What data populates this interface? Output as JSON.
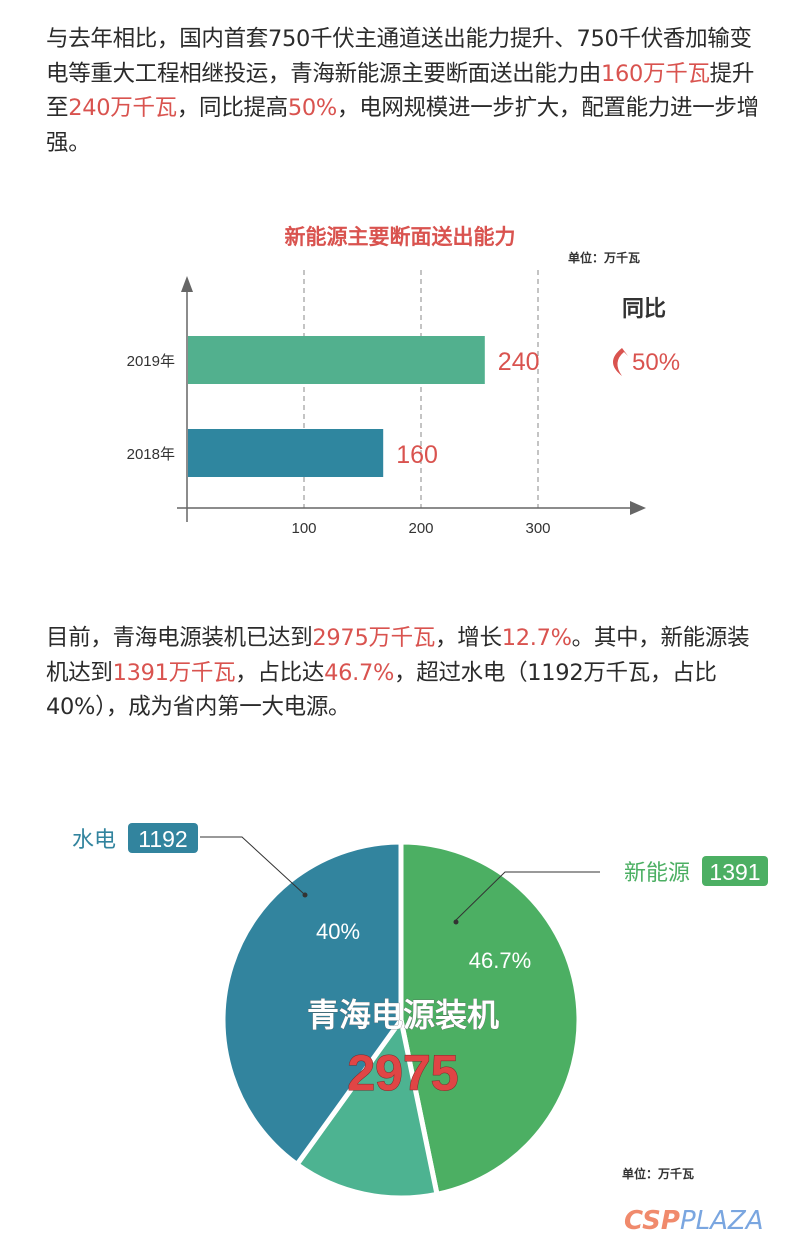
{
  "paragraph1": {
    "parts": [
      "与去年相比，国内首套750千伏主通道送出能力提升、750千伏香加输变电等重大工程相继投运，青海新能源主要断面送出能力由",
      "160万千瓦",
      "提升至",
      "240万千瓦",
      "，同比提高",
      "50%",
      "，电网规模进一步扩大，配置能力进一步增强。"
    ]
  },
  "paragraph2": {
    "parts": [
      "目前，青海电源装机已达到",
      "2975万千瓦",
      "，增长",
      "12.7%",
      "。其中，新能源装机达到",
      "1391万千瓦",
      "，占比达",
      "46.7%",
      "，超过水电（1192万千瓦，占比40%），成为省内第一大电源。"
    ]
  },
  "chart_data": [
    {
      "type": "bar",
      "orientation": "horizontal",
      "title": "新能源主要断面送出能力",
      "unit_label": "单位：万千瓦",
      "categories": [
        "2019年",
        "2018年"
      ],
      "values": [
        240,
        160
      ],
      "value_labels": [
        "240",
        "160"
      ],
      "x_ticks": [
        "100",
        "200",
        "300"
      ],
      "xlim": [
        0,
        300
      ],
      "grid": "dashed vertical",
      "yoy_label": "同比",
      "yoy_value": "50%",
      "colors": {
        "2019年": "#52b08e",
        "2018年": "#2f869f",
        "labels": "#d9534f"
      }
    },
    {
      "type": "pie",
      "center_title": "青海电源装机",
      "center_total": "2975",
      "unit_label": "单位：万千瓦",
      "slices": [
        {
          "name": "新能源",
          "value": 1391,
          "value_label": "1391",
          "percent_label": "46.7%",
          "color": "#4caf63"
        },
        {
          "value": 392,
          "color": "#4db391"
        },
        {
          "name": "水电",
          "value": 1192,
          "value_label": "1192",
          "percent_label": "40%",
          "color": "#32849e"
        }
      ]
    }
  ],
  "watermark": "CSPPLAZA"
}
